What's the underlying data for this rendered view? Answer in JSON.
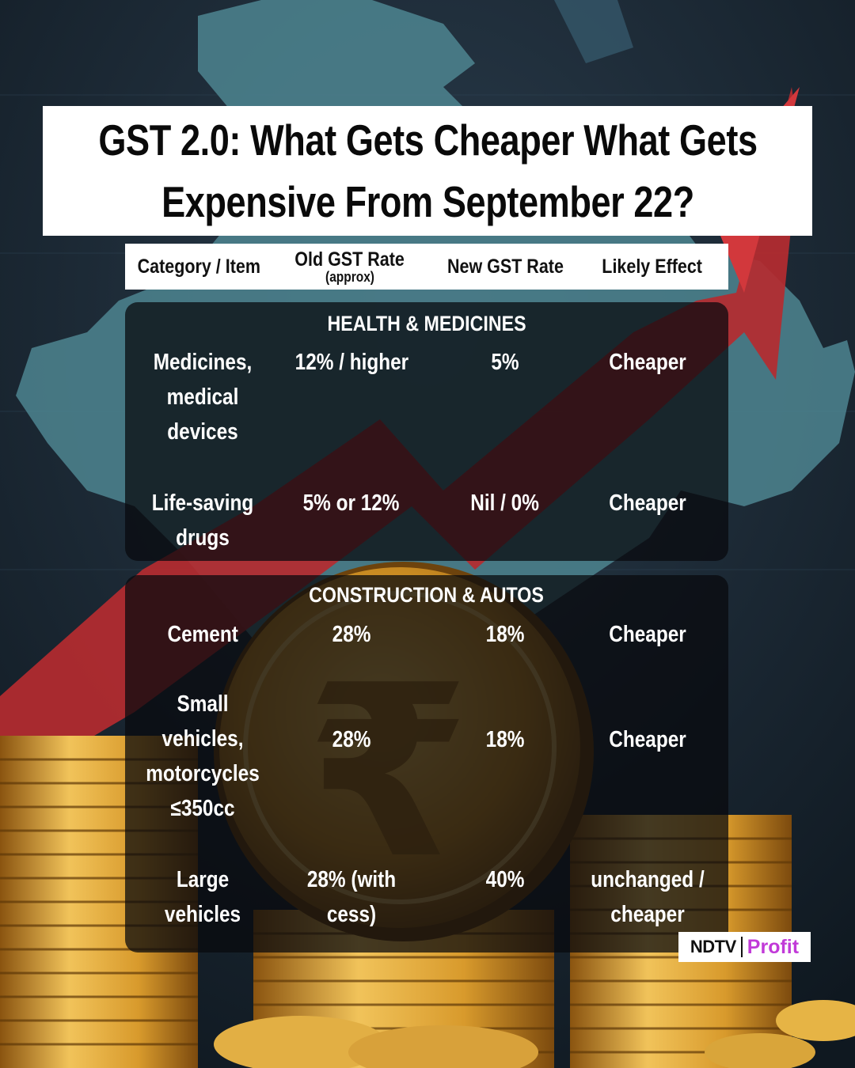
{
  "title": {
    "line1": "GST 2.0: What Gets Cheaper What Gets",
    "line2": "Expensive From September 22?"
  },
  "table_header": {
    "col1": "Category / Item",
    "col2": "Old GST Rate",
    "col2_sub": "(approx)",
    "col3": "New GST Rate",
    "col4": "Likely Effect"
  },
  "sections": [
    {
      "title": "HEALTH & MEDICINES",
      "rows": [
        {
          "item": "Medicines, medical devices",
          "old": "12% / higher",
          "new": "5%",
          "effect": "Cheaper"
        },
        {
          "item": "Life-saving drugs",
          "old": "5% or 12%",
          "new": "Nil / 0%",
          "effect": "Cheaper"
        }
      ]
    },
    {
      "title": "CONSTRUCTION & AUTOS",
      "rows": [
        {
          "item": "Cement",
          "old": "28%",
          "new": "18%",
          "effect": "Cheaper"
        },
        {
          "item": "Small vehicles, motorcycles ≤350cc",
          "old": "28%",
          "new": "18%",
          "effect": "Cheaper"
        },
        {
          "item": "Large vehicles",
          "old": "28% (with cess)",
          "new": "40%",
          "effect": "unchanged / cheaper"
        }
      ]
    }
  ],
  "logo": {
    "brand": "NDTV",
    "sub_brand": "Profit"
  },
  "colors": {
    "background": "#16222c",
    "map": "#4e8590",
    "arrow": "#b52b30",
    "coin": "#d49a2a",
    "brand_accent": "#c13ad8"
  }
}
